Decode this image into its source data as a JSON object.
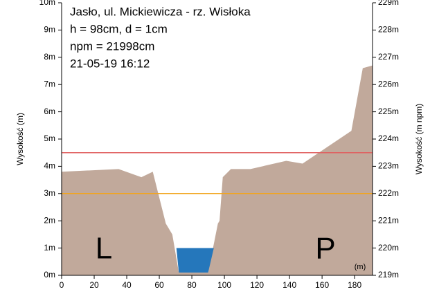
{
  "chart_data": {
    "type": "area",
    "info": [
      "Jasło, ul. Mickiewicza - rz. Wisłoka",
      "h = 98cm, d = 1cm",
      "npm = 21998cm",
      "21-05-19 16:12"
    ],
    "ylabel": "Wysokość (m)",
    "y2label": "Wysokość (m npm)",
    "xunit": "(m)",
    "bank_labels": [
      "L",
      "P"
    ],
    "xlim": [
      0,
      191
    ],
    "xticks": [
      0,
      20,
      40,
      60,
      80,
      100,
      120,
      140,
      160,
      180
    ],
    "ylim": [
      0,
      10
    ],
    "yticks": [
      {
        "value": 0,
        "label": "0m"
      },
      {
        "value": 1,
        "label": "1m"
      },
      {
        "value": 2,
        "label": "2m"
      },
      {
        "value": 3,
        "label": "3m"
      },
      {
        "value": 4,
        "label": "4m"
      },
      {
        "value": 5,
        "label": "5m"
      },
      {
        "value": 6,
        "label": "6m"
      },
      {
        "value": 7,
        "label": "7m"
      },
      {
        "value": 8,
        "label": "8m"
      },
      {
        "value": 9,
        "label": "9m"
      },
      {
        "value": 10,
        "label": "10m"
      }
    ],
    "y2lim": [
      219,
      229
    ],
    "y2ticks": [
      {
        "value": 219,
        "label": "219m"
      },
      {
        "value": 220,
        "label": "220m"
      },
      {
        "value": 221,
        "label": "221m"
      },
      {
        "value": 222,
        "label": "222m"
      },
      {
        "value": 223,
        "label": "223m"
      },
      {
        "value": 224,
        "label": "224m"
      },
      {
        "value": 225,
        "label": "225m"
      },
      {
        "value": 226,
        "label": "226m"
      },
      {
        "value": 227,
        "label": "227m"
      },
      {
        "value": 228,
        "label": "228m"
      },
      {
        "value": 229,
        "label": "229m"
      }
    ],
    "ground": {
      "color": "#c1a99b",
      "x": [
        0,
        35,
        49,
        56,
        64,
        68,
        72,
        90,
        96,
        97,
        99,
        104,
        116,
        138,
        148,
        178,
        185,
        191
      ],
      "y": [
        3.8,
        3.9,
        3.6,
        3.8,
        1.9,
        1.5,
        0.1,
        0.1,
        1.9,
        2.0,
        3.6,
        3.9,
        3.9,
        4.2,
        4.1,
        5.3,
        7.6,
        7.7
      ]
    },
    "water": {
      "color": "#2577bb",
      "x": [
        70.5,
        93.5,
        90,
        72
      ],
      "y": [
        1,
        1,
        0.1,
        0.1
      ]
    },
    "reference_lines": [
      {
        "value": 4.5,
        "color": "#e06060"
      },
      {
        "value": 3,
        "color": "#f2a51c"
      }
    ]
  }
}
